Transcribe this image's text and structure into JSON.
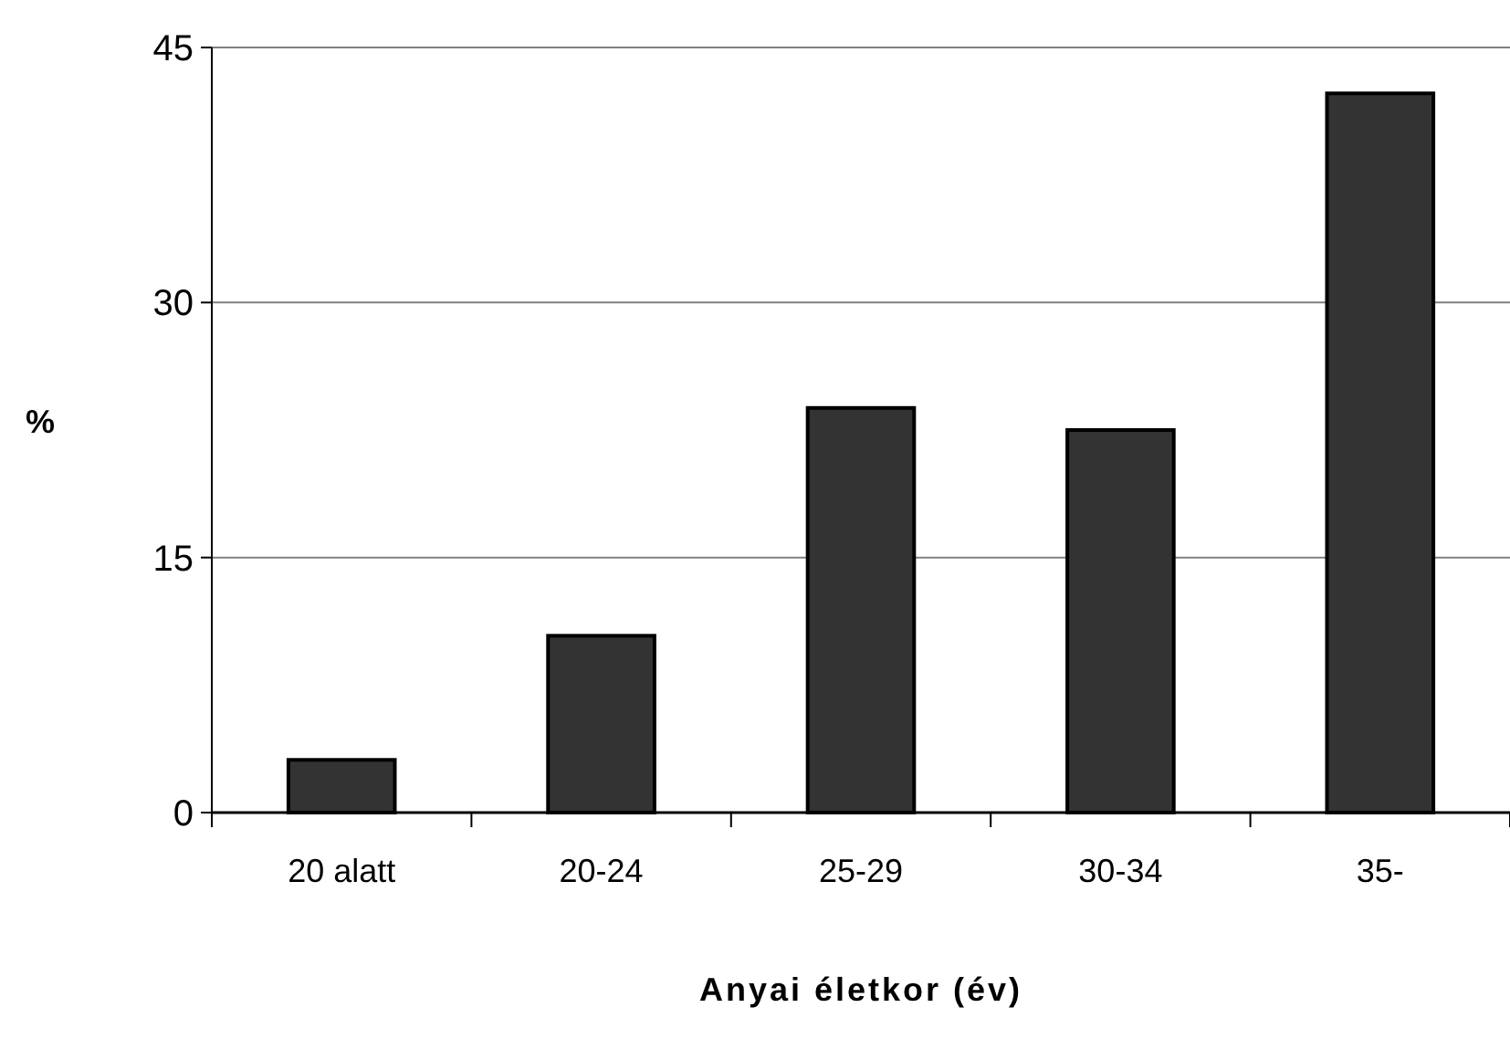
{
  "chart_data": {
    "type": "bar",
    "xlabel": "Anyai életkor (év)",
    "ylabel": "%",
    "categories": [
      "20 alatt",
      "20-24",
      "25-29",
      "30-34",
      "35-"
    ],
    "values": [
      3.1,
      10.4,
      23.8,
      22.5,
      42.3
    ],
    "color": "#333333",
    "ylim": [
      0,
      45
    ],
    "yticks": [
      0,
      15,
      30,
      45
    ],
    "grid": "y"
  }
}
